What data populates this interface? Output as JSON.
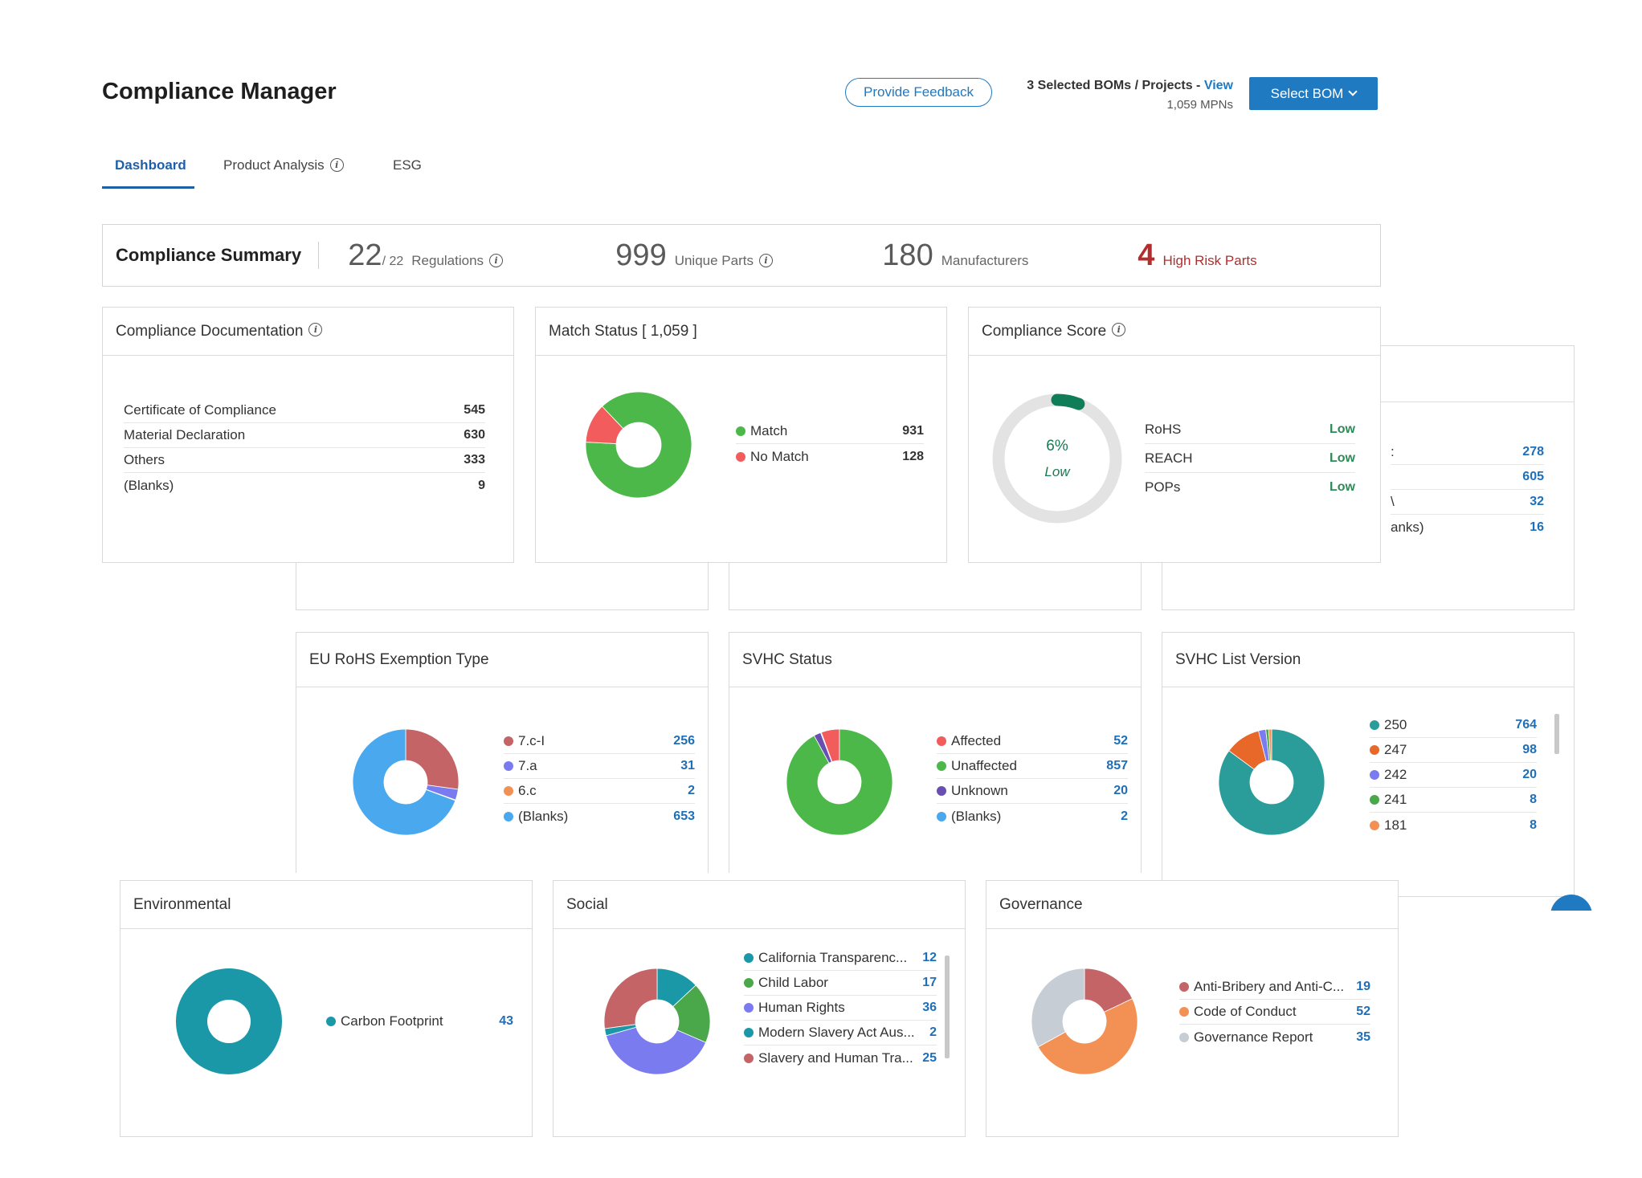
{
  "header": {
    "title": "Compliance Manager",
    "feedback_label": "Provide Feedback",
    "boms_label": "3 Selected BOMs / Projects - ",
    "boms_view": "View",
    "mpns": "1,059 MPNs",
    "select_bom_label": "Select BOM"
  },
  "tabs": [
    {
      "label": "Dashboard",
      "active": true
    },
    {
      "label": "Product Analysis",
      "active": false
    },
    {
      "label": "ESG",
      "active": false
    }
  ],
  "summary": {
    "title": "Compliance Summary",
    "regulations_count": "22",
    "regulations_total": "/ 22",
    "regulations_label": "Regulations",
    "unique_parts": "999",
    "unique_parts_label": "Unique Parts",
    "manufacturers": "180",
    "manufacturers_label": "Manufacturers",
    "high_risk": "4",
    "high_risk_label": "High Risk Parts"
  },
  "compliance_documentation": {
    "title": "Compliance Documentation",
    "rows": [
      {
        "label": "Certificate of Compliance",
        "value": "545"
      },
      {
        "label": "Material Declaration",
        "value": "630"
      },
      {
        "label": "Others",
        "value": "333"
      },
      {
        "label": "(Blanks)",
        "value": "9"
      }
    ]
  },
  "match_status": {
    "title": "Match Status [ 1,059 ]",
    "items": [
      {
        "label": "Match",
        "value": "931",
        "color": "#4cb84a"
      },
      {
        "label": "No Match",
        "value": "128",
        "color": "#f25c5c"
      }
    ]
  },
  "compliance_score": {
    "title": "Compliance Score",
    "percent": "6%",
    "level": "Low",
    "fraction": 0.06,
    "rows": [
      {
        "label": "RoHS",
        "value": "Low"
      },
      {
        "label": "REACH",
        "value": "Low"
      },
      {
        "label": "POPs",
        "value": "Low"
      }
    ]
  },
  "hidden_card": {
    "rows": [
      {
        "label": ":",
        "value": "278"
      },
      {
        "label": "",
        "value": "605"
      },
      {
        "label": "\\",
        "value": "32"
      },
      {
        "label": "anks)",
        "value": "16"
      }
    ]
  },
  "eu_rohs": {
    "title": "EU RoHS Exemption Type",
    "items": [
      {
        "label": "7.c-I",
        "value": "256",
        "color": "#c46466"
      },
      {
        "label": "7.a",
        "value": "31",
        "color": "#7b7bf0"
      },
      {
        "label": "6.c",
        "value": "2",
        "color": "#f39155"
      },
      {
        "label": "(Blanks)",
        "value": "653",
        "color": "#4aa8ef"
      }
    ]
  },
  "svhc_status": {
    "title": "SVHC Status",
    "items": [
      {
        "label": "Affected",
        "value": "52",
        "color": "#f25c5c"
      },
      {
        "label": "Unaffected",
        "value": "857",
        "color": "#4cb84a"
      },
      {
        "label": "Unknown",
        "value": "20",
        "color": "#6a4fb3"
      },
      {
        "label": "(Blanks)",
        "value": "2",
        "color": "#4aa8ef"
      }
    ]
  },
  "svhc_list": {
    "title": "SVHC List Version",
    "items": [
      {
        "label": "250",
        "value": "764",
        "color": "#2a9d9a"
      },
      {
        "label": "247",
        "value": "98",
        "color": "#e8682a"
      },
      {
        "label": "242",
        "value": "20",
        "color": "#7b7bf0"
      },
      {
        "label": "241",
        "value": "8",
        "color": "#4aa84a"
      },
      {
        "label": "181",
        "value": "8",
        "color": "#f39155"
      }
    ]
  },
  "environmental": {
    "title": "Environmental",
    "items": [
      {
        "label": "Carbon Footprint",
        "value": "43",
        "color": "#1a98a8"
      }
    ]
  },
  "social": {
    "title": "Social",
    "items": [
      {
        "label": "California Transparenc...",
        "value": "12",
        "color": "#1a98a8"
      },
      {
        "label": "Child Labor",
        "value": "17",
        "color": "#4aa84a"
      },
      {
        "label": "Human Rights",
        "value": "36",
        "color": "#7b7bf0"
      },
      {
        "label": "Modern Slavery Act Aus...",
        "value": "2",
        "color": "#1a98a8"
      },
      {
        "label": "Slavery and Human Tra...",
        "value": "25",
        "color": "#c46466"
      }
    ]
  },
  "governance": {
    "title": "Governance",
    "items": [
      {
        "label": "Anti-Bribery and Anti-C...",
        "value": "19",
        "color": "#c46466"
      },
      {
        "label": "Code of Conduct",
        "value": "52",
        "color": "#f39155"
      },
      {
        "label": "Governance Report",
        "value": "35",
        "color": "#c6cdd4"
      }
    ]
  },
  "chart_data": [
    {
      "type": "pie",
      "title": "Match Status [ 1,059 ]",
      "categories": [
        "Match",
        "No Match"
      ],
      "values": [
        931,
        128
      ]
    },
    {
      "type": "pie",
      "title": "EU RoHS Exemption Type",
      "categories": [
        "7.c-I",
        "7.a",
        "6.c",
        "(Blanks)"
      ],
      "values": [
        256,
        31,
        2,
        653
      ]
    },
    {
      "type": "pie",
      "title": "SVHC Status",
      "categories": [
        "Affected",
        "Unaffected",
        "Unknown",
        "(Blanks)"
      ],
      "values": [
        52,
        857,
        20,
        2
      ]
    },
    {
      "type": "pie",
      "title": "SVHC List Version",
      "categories": [
        "250",
        "247",
        "242",
        "241",
        "181"
      ],
      "values": [
        764,
        98,
        20,
        8,
        8
      ]
    },
    {
      "type": "pie",
      "title": "Environmental",
      "categories": [
        "Carbon Footprint"
      ],
      "values": [
        43
      ]
    },
    {
      "type": "pie",
      "title": "Social",
      "categories": [
        "California Transparenc...",
        "Child Labor",
        "Human Rights",
        "Modern Slavery Act Aus...",
        "Slavery and Human Tra..."
      ],
      "values": [
        12,
        17,
        36,
        2,
        25
      ]
    },
    {
      "type": "pie",
      "title": "Governance",
      "categories": [
        "Anti-Bribery and Anti-C...",
        "Code of Conduct",
        "Governance Report"
      ],
      "values": [
        19,
        52,
        35
      ]
    }
  ]
}
